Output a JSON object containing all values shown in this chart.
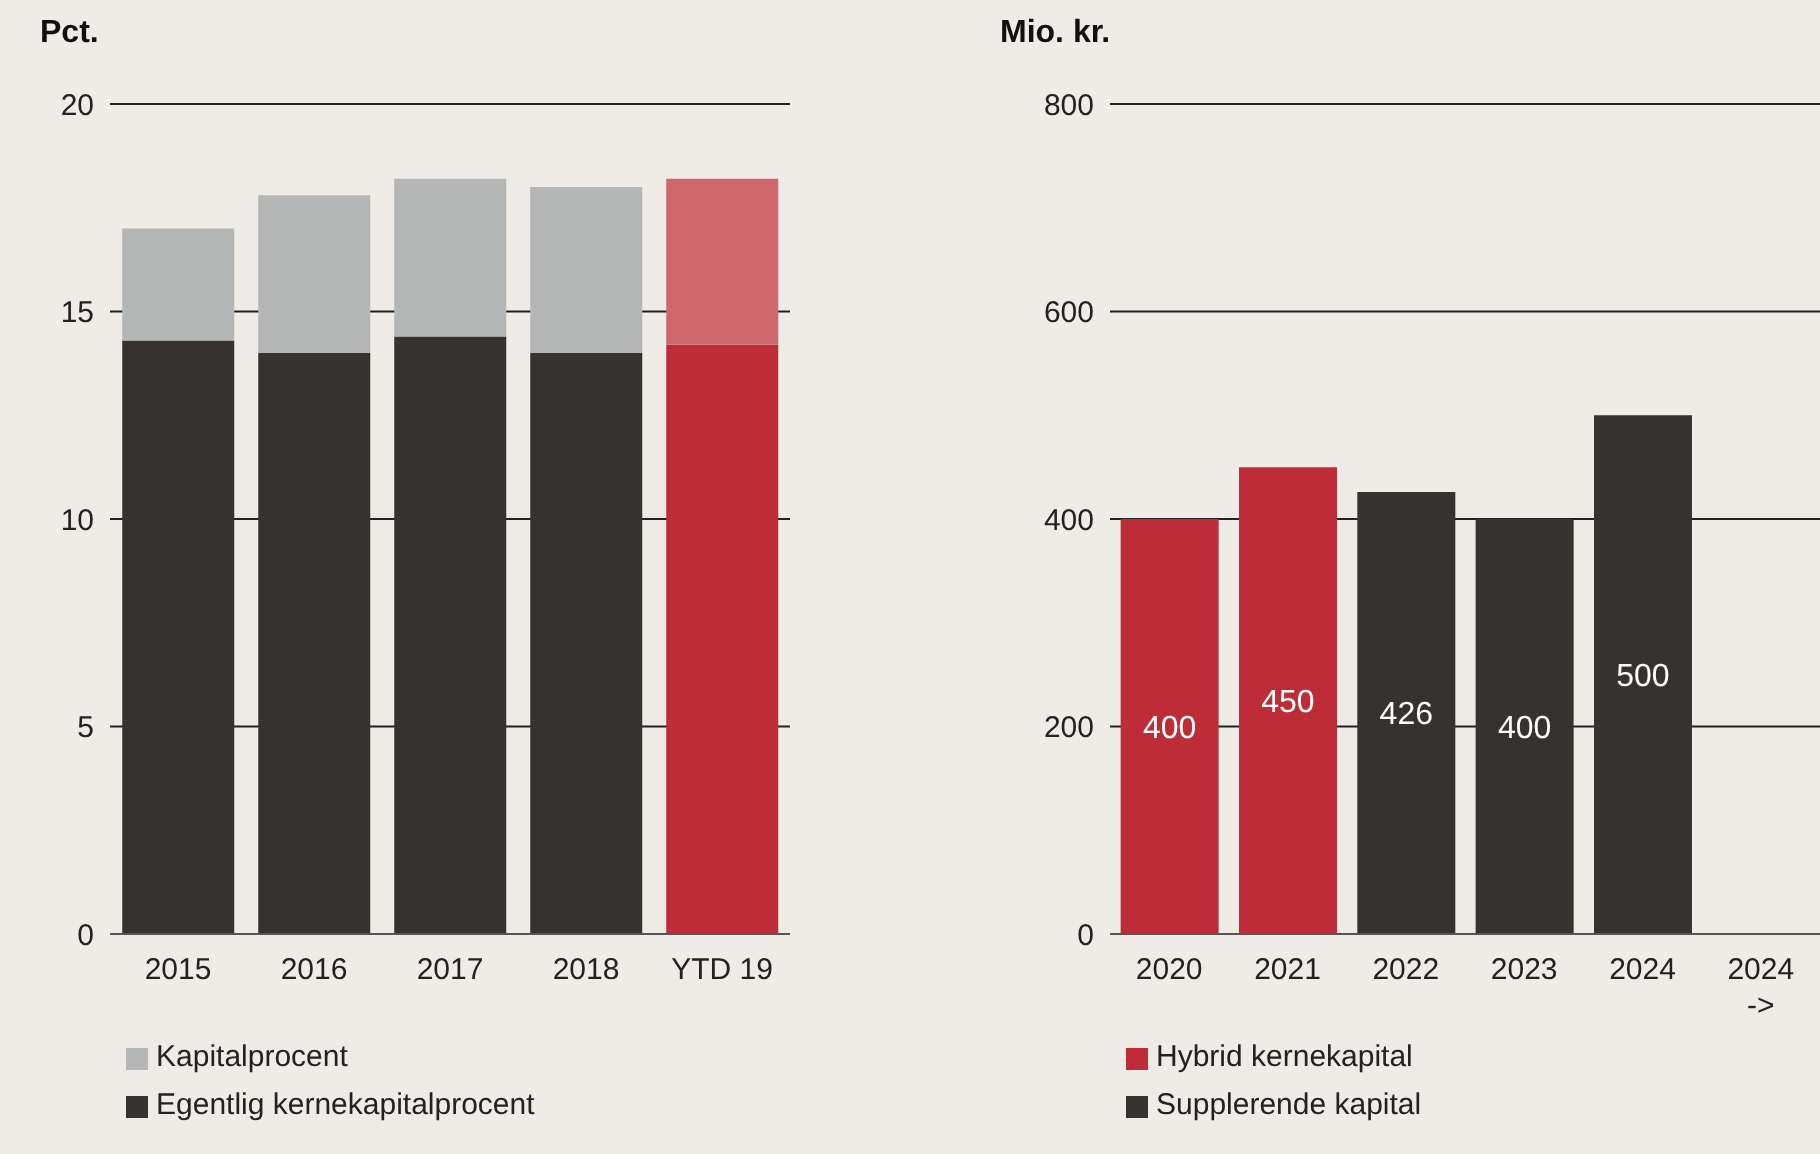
{
  "chart_data": [
    {
      "type": "bar",
      "ylabel": "Pct.",
      "stacked": true,
      "grid": "y",
      "legend": "bottom",
      "categories": [
        "2015",
        "2016",
        "2017",
        "2018",
        "YTD 19"
      ],
      "ylim": [
        0,
        20
      ],
      "yticks": [
        0,
        5,
        10,
        15,
        20
      ],
      "series": [
        {
          "name": "Egentlig kernekapitalprocent",
          "color": "#363230",
          "colors": [
            "#363230",
            "#363230",
            "#363230",
            "#363230",
            "#be2d37"
          ],
          "values": [
            14.3,
            14.0,
            14.4,
            14.0,
            14.2
          ]
        },
        {
          "name": "Kapitalprocent",
          "color": "#b5b6b6",
          "colors": [
            "#b5b6b6",
            "#b5b6b6",
            "#b5b6b6",
            "#b5b6b6",
            "#cd676b"
          ],
          "values": [
            2.7,
            3.8,
            3.8,
            4.0,
            4.0
          ]
        }
      ]
    },
    {
      "type": "bar",
      "ylabel": "Mio. kr.",
      "stacked": true,
      "grid": "y",
      "legend": "bottom",
      "data_labels": true,
      "categories": [
        "2020",
        "2021",
        "2022",
        "2023",
        "2024",
        "2024 ->"
      ],
      "ylim": [
        0,
        800
      ],
      "yticks": [
        0,
        200,
        400,
        600,
        800
      ],
      "series": [
        {
          "name": "Supplerende kapital",
          "color": "#363230",
          "values": [
            null,
            null,
            426,
            400,
            500,
            null
          ]
        },
        {
          "name": "Hybrid kernekapital",
          "color": "#be2d37",
          "values": [
            400,
            450,
            null,
            null,
            null,
            null
          ]
        }
      ]
    }
  ]
}
